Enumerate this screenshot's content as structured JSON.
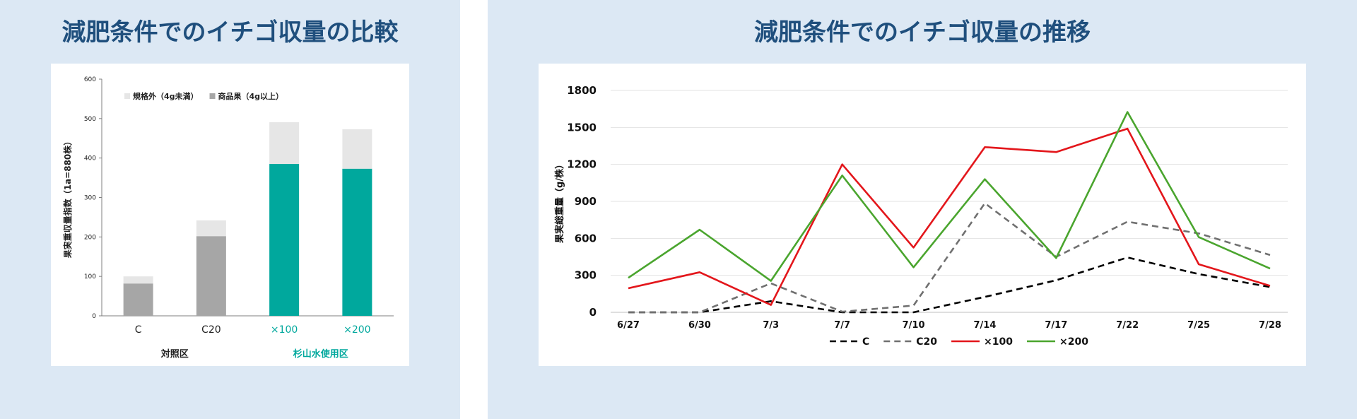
{
  "left_panel": {
    "title": "減肥条件でのイチゴ収量の比較"
  },
  "right_panel": {
    "title": "減肥条件でのイチゴ収量の推移"
  },
  "chart_data": [
    {
      "type": "bar",
      "stacked": true,
      "title": "減肥条件でのイチゴ収量の比較",
      "categories": [
        "C",
        "C20",
        "×100",
        "×200"
      ],
      "category_colors": [
        "#222222",
        "#222222",
        "#00a89d",
        "#00a89d"
      ],
      "groups": [
        {
          "label": "対照区",
          "categories": [
            "C",
            "C20"
          ],
          "color": "#222222"
        },
        {
          "label": "杉山水使用区",
          "categories": [
            "×100",
            "×200"
          ],
          "color": "#00a89d"
        }
      ],
      "series": [
        {
          "name": "商品果（4g以上）",
          "values": [
            82,
            202,
            385,
            373
          ],
          "colors": [
            "#a6a6a6",
            "#a6a6a6",
            "#00a89d",
            "#00a89d"
          ]
        },
        {
          "name": "規格外（4g未満）",
          "values": [
            18,
            40,
            106,
            100
          ],
          "colors": [
            "#e6e6e6",
            "#e6e6e6",
            "#e6e6e6",
            "#e6e6e6"
          ]
        }
      ],
      "legend": [
        {
          "name": "規格外（4g未満）",
          "color": "#e6e6e6"
        },
        {
          "name": "商品果（4g以上）",
          "color": "#a6a6a6"
        }
      ],
      "ylabel": "果実重収量指数（1a=880株）",
      "xlabel": "",
      "ylim": [
        0,
        600
      ],
      "yticks": [
        0,
        100,
        200,
        300,
        400,
        500,
        600
      ],
      "legend_position": "top-left",
      "grid": false
    },
    {
      "type": "line",
      "title": "減肥条件でのイチゴ収量の推移",
      "x": [
        "6/27",
        "6/30",
        "7/3",
        "7/7",
        "7/10",
        "7/14",
        "7/17",
        "7/22",
        "7/25",
        "7/28"
      ],
      "series": [
        {
          "name": "C",
          "color": "#000000",
          "dash": "dashed",
          "values": [
            0,
            0,
            90,
            0,
            0,
            125,
            260,
            445,
            310,
            205
          ]
        },
        {
          "name": "C20",
          "color": "#707070",
          "dash": "dashed",
          "values": [
            0,
            0,
            235,
            5,
            55,
            885,
            450,
            735,
            640,
            465
          ]
        },
        {
          "name": "×100",
          "color": "#e3161b",
          "dash": "solid",
          "values": [
            195,
            325,
            60,
            1200,
            525,
            1340,
            1300,
            1490,
            390,
            215
          ]
        },
        {
          "name": "×200",
          "color": "#4aa52e",
          "dash": "solid",
          "values": [
            280,
            670,
            255,
            1110,
            365,
            1080,
            440,
            1625,
            610,
            355
          ]
        }
      ],
      "ylabel": "果実総重量（g/株）",
      "xlabel": "",
      "ylim": [
        0,
        1800
      ],
      "yticks": [
        0,
        300,
        600,
        900,
        1200,
        1500,
        1800
      ],
      "legend_position": "bottom-center",
      "grid": true
    }
  ]
}
